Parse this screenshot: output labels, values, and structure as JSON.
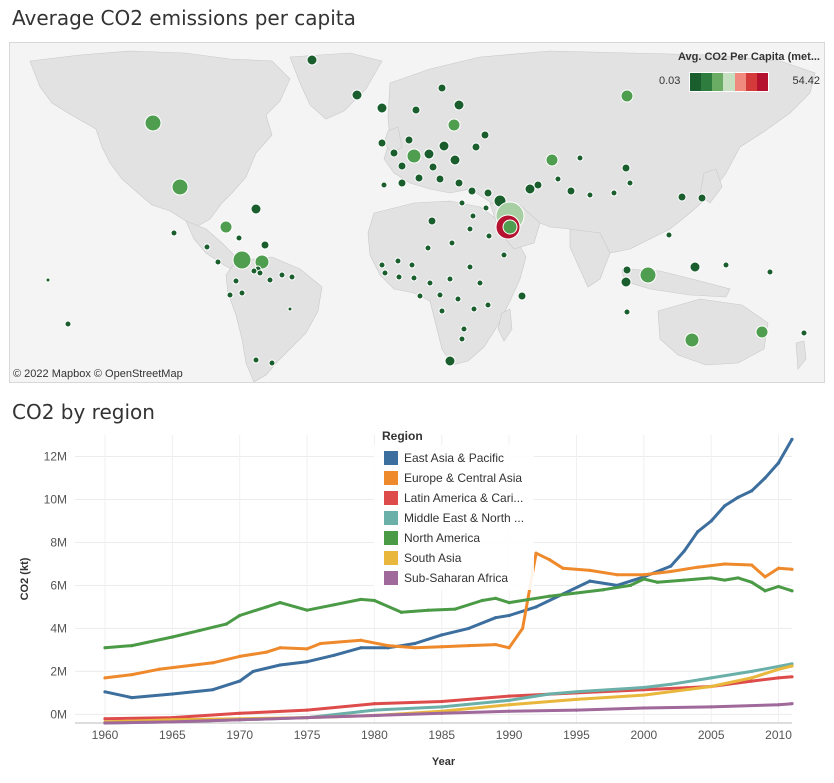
{
  "map": {
    "title": "Average CO2 emissions per capita",
    "attribution": "© 2022 Mapbox  © OpenStreetMap",
    "legend": {
      "title": "Avg. CO2 Per Capita (met...",
      "min": "0.03",
      "max": "54.42",
      "colors": [
        "#1b5e2d",
        "#2e7d3e",
        "#6aac64",
        "#c5dfc0",
        "#f08a7e",
        "#d43a3a",
        "#b5122f"
      ]
    }
  },
  "colors": {
    "land": "#e2e2e2",
    "water": "#f4f4f4",
    "dot_dark": "#1b5e2d",
    "dot_mid": "#4f9d4f",
    "dot_light": "#a7cfa3",
    "dot_red": "#b5122f"
  },
  "chart": {
    "title": "CO2 by region"
  },
  "chart_data": {
    "type": "line",
    "xlabel": "Year",
    "ylabel": "CO2 (kt)",
    "xlim": [
      1960,
      2011
    ],
    "ylim": [
      -400000,
      13000000
    ],
    "x_ticks": [
      1960,
      1965,
      1970,
      1975,
      1980,
      1985,
      1990,
      1995,
      2000,
      2005,
      2010
    ],
    "y_ticks": [
      {
        "value": 0,
        "label": "0M"
      },
      {
        "value": 2000000,
        "label": "2M"
      },
      {
        "value": 4000000,
        "label": "4M"
      },
      {
        "value": 6000000,
        "label": "6M"
      },
      {
        "value": 8000000,
        "label": "8M"
      },
      {
        "value": 10000000,
        "label": "10M"
      },
      {
        "value": 12000000,
        "label": "12M"
      }
    ],
    "legend_title": "Region",
    "legend_position": "top",
    "series": [
      {
        "name": "East Asia & Pacific",
        "color": "#3c6e9e",
        "points": [
          [
            1960,
            1050000
          ],
          [
            1962,
            780000
          ],
          [
            1965,
            950000
          ],
          [
            1968,
            1150000
          ],
          [
            1970,
            1550000
          ],
          [
            1971,
            2000000
          ],
          [
            1973,
            2300000
          ],
          [
            1975,
            2450000
          ],
          [
            1977,
            2750000
          ],
          [
            1979,
            3100000
          ],
          [
            1981,
            3100000
          ],
          [
            1983,
            3300000
          ],
          [
            1985,
            3700000
          ],
          [
            1987,
            4000000
          ],
          [
            1989,
            4500000
          ],
          [
            1990,
            4600000
          ],
          [
            1992,
            5000000
          ],
          [
            1994,
            5600000
          ],
          [
            1996,
            6200000
          ],
          [
            1998,
            6000000
          ],
          [
            2000,
            6400000
          ],
          [
            2002,
            6900000
          ],
          [
            2003,
            7600000
          ],
          [
            2004,
            8500000
          ],
          [
            2005,
            9000000
          ],
          [
            2006,
            9700000
          ],
          [
            2007,
            10100000
          ],
          [
            2008,
            10400000
          ],
          [
            2009,
            11000000
          ],
          [
            2010,
            11700000
          ],
          [
            2011,
            12800000
          ]
        ]
      },
      {
        "name": "Europe & Central Asia",
        "color": "#ef8a2c",
        "points": [
          [
            1960,
            1700000
          ],
          [
            1962,
            1850000
          ],
          [
            1964,
            2100000
          ],
          [
            1966,
            2250000
          ],
          [
            1968,
            2400000
          ],
          [
            1970,
            2700000
          ],
          [
            1972,
            2900000
          ],
          [
            1973,
            3100000
          ],
          [
            1975,
            3050000
          ],
          [
            1976,
            3300000
          ],
          [
            1979,
            3450000
          ],
          [
            1981,
            3200000
          ],
          [
            1983,
            3100000
          ],
          [
            1985,
            3150000
          ],
          [
            1987,
            3200000
          ],
          [
            1989,
            3250000
          ],
          [
            1990,
            3100000
          ],
          [
            1991,
            4000000
          ],
          [
            1992,
            7500000
          ],
          [
            1993,
            7200000
          ],
          [
            1994,
            6800000
          ],
          [
            1996,
            6700000
          ],
          [
            1998,
            6500000
          ],
          [
            2000,
            6500000
          ],
          [
            2002,
            6650000
          ],
          [
            2004,
            6850000
          ],
          [
            2006,
            7000000
          ],
          [
            2008,
            6950000
          ],
          [
            2009,
            6400000
          ],
          [
            2010,
            6800000
          ],
          [
            2011,
            6750000
          ]
        ]
      },
      {
        "name": "Latin America & Cari...",
        "color": "#de4b4b",
        "points": [
          [
            1960,
            -200000
          ],
          [
            1965,
            -150000
          ],
          [
            1970,
            50000
          ],
          [
            1975,
            200000
          ],
          [
            1980,
            500000
          ],
          [
            1985,
            600000
          ],
          [
            1990,
            850000
          ],
          [
            1995,
            1000000
          ],
          [
            2000,
            1150000
          ],
          [
            2005,
            1300000
          ],
          [
            2008,
            1550000
          ],
          [
            2010,
            1700000
          ],
          [
            2011,
            1750000
          ]
        ]
      },
      {
        "name": "Middle East & North ...",
        "color": "#6ab0a8",
        "points": [
          [
            1960,
            -400000
          ],
          [
            1965,
            -350000
          ],
          [
            1970,
            -250000
          ],
          [
            1975,
            -150000
          ],
          [
            1980,
            200000
          ],
          [
            1985,
            350000
          ],
          [
            1990,
            650000
          ],
          [
            1993,
            950000
          ],
          [
            1995,
            1050000
          ],
          [
            2000,
            1250000
          ],
          [
            2002,
            1400000
          ],
          [
            2005,
            1700000
          ],
          [
            2008,
            2000000
          ],
          [
            2011,
            2350000
          ]
        ]
      },
      {
        "name": "North America",
        "color": "#4a9a46",
        "points": [
          [
            1960,
            3100000
          ],
          [
            1962,
            3200000
          ],
          [
            1965,
            3600000
          ],
          [
            1967,
            3900000
          ],
          [
            1969,
            4200000
          ],
          [
            1970,
            4600000
          ],
          [
            1972,
            5000000
          ],
          [
            1973,
            5200000
          ],
          [
            1975,
            4850000
          ],
          [
            1977,
            5100000
          ],
          [
            1979,
            5350000
          ],
          [
            1980,
            5300000
          ],
          [
            1982,
            4750000
          ],
          [
            1984,
            4850000
          ],
          [
            1986,
            4900000
          ],
          [
            1988,
            5300000
          ],
          [
            1989,
            5400000
          ],
          [
            1990,
            5200000
          ],
          [
            1993,
            5500000
          ],
          [
            1995,
            5650000
          ],
          [
            1997,
            5800000
          ],
          [
            1999,
            6000000
          ],
          [
            2000,
            6300000
          ],
          [
            2001,
            6150000
          ],
          [
            2003,
            6250000
          ],
          [
            2005,
            6350000
          ],
          [
            2006,
            6250000
          ],
          [
            2007,
            6350000
          ],
          [
            2008,
            6150000
          ],
          [
            2009,
            5750000
          ],
          [
            2010,
            5950000
          ],
          [
            2011,
            5750000
          ]
        ]
      },
      {
        "name": "South Asia",
        "color": "#e8b73c",
        "points": [
          [
            1960,
            -350000
          ],
          [
            1965,
            -250000
          ],
          [
            1970,
            -200000
          ],
          [
            1975,
            -150000
          ],
          [
            1980,
            -50000
          ],
          [
            1985,
            150000
          ],
          [
            1990,
            450000
          ],
          [
            1995,
            700000
          ],
          [
            2000,
            900000
          ],
          [
            2005,
            1300000
          ],
          [
            2008,
            1700000
          ],
          [
            2010,
            2100000
          ],
          [
            2011,
            2250000
          ]
        ]
      },
      {
        "name": "Sub-Saharan Africa",
        "color": "#a0699b",
        "points": [
          [
            1960,
            -400000
          ],
          [
            1965,
            -350000
          ],
          [
            1970,
            -250000
          ],
          [
            1975,
            -150000
          ],
          [
            1980,
            -50000
          ],
          [
            1985,
            50000
          ],
          [
            1990,
            150000
          ],
          [
            1995,
            200000
          ],
          [
            2000,
            300000
          ],
          [
            2005,
            350000
          ],
          [
            2010,
            450000
          ],
          [
            2011,
            500000
          ]
        ]
      }
    ]
  }
}
